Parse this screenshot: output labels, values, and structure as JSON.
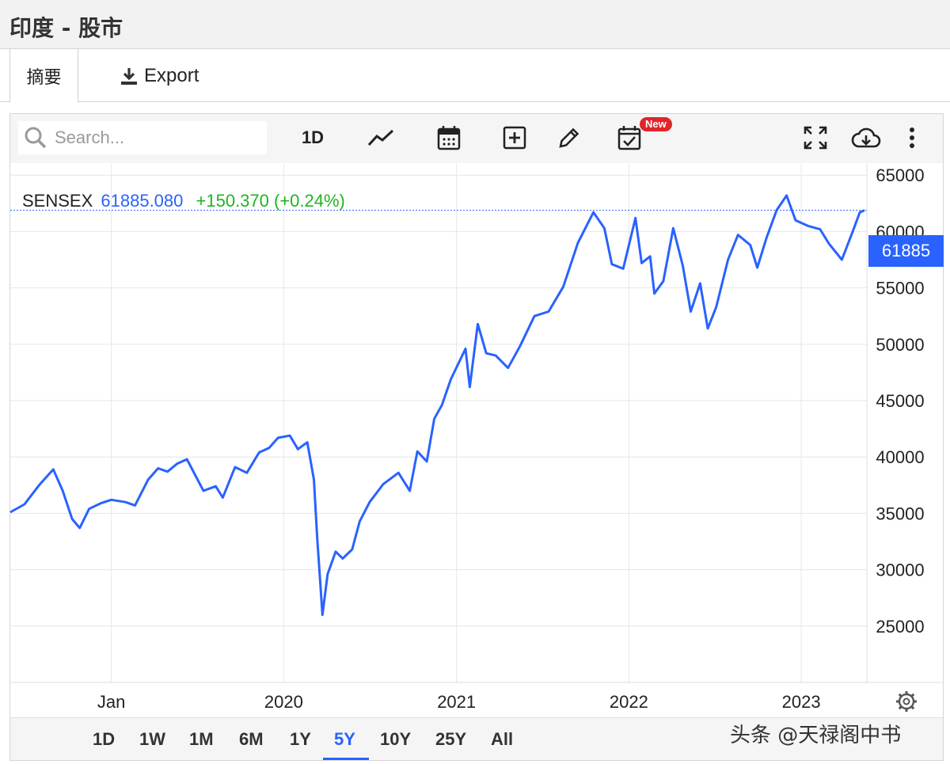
{
  "page": {
    "title": "印度 - 股市"
  },
  "tabs": {
    "summary": "摘要",
    "export": "Export"
  },
  "toolbar": {
    "search_placeholder": "Search...",
    "interval": "1D",
    "new_badge": "New",
    "icons": [
      "search-icon",
      "line-chart-icon",
      "calendar-icon",
      "add-indicator-icon",
      "draw-pencil-icon",
      "calendar-check-icon",
      "fullscreen-icon",
      "cloud-download-icon",
      "more-vertical-icon"
    ]
  },
  "legend": {
    "symbol": "SENSEX",
    "price": "61885.080",
    "change": "+150.370 (+0.24%)"
  },
  "price_tag": "61885",
  "range_buttons": [
    "1D",
    "1W",
    "1M",
    "6M",
    "1Y",
    "5Y",
    "10Y",
    "25Y",
    "All"
  ],
  "active_range": "5Y",
  "watermark": "头条 @天禄阁中书",
  "colors": {
    "line": "#2962ff",
    "positive": "#1fb51f",
    "grid": "#e6e6e6",
    "badge": "#e0262b"
  },
  "chart_data": {
    "type": "line",
    "series": [
      {
        "name": "SENSEX",
        "x": [
          "2018-06-01",
          "2018-07-01",
          "2018-08-01",
          "2018-08-31",
          "2018-09-20",
          "2018-10-10",
          "2018-10-26",
          "2018-11-15",
          "2018-12-10",
          "2019-01-01",
          "2019-01-31",
          "2019-02-20",
          "2019-03-20",
          "2019-04-10",
          "2019-04-30",
          "2019-05-20",
          "2019-06-10",
          "2019-07-15",
          "2019-08-10",
          "2019-08-25",
          "2019-09-20",
          "2019-10-15",
          "2019-11-10",
          "2019-12-01",
          "2019-12-20",
          "2020-01-14",
          "2020-01-31",
          "2020-02-20",
          "2020-03-05",
          "2020-03-12",
          "2020-03-23",
          "2020-04-03",
          "2020-04-20",
          "2020-05-05",
          "2020-05-25",
          "2020-06-10",
          "2020-07-01",
          "2020-07-30",
          "2020-08-31",
          "2020-09-24",
          "2020-10-10",
          "2020-10-30",
          "2020-11-15",
          "2020-12-01",
          "2020-12-20",
          "2021-01-20",
          "2021-01-29",
          "2021-02-15",
          "2021-03-05",
          "2021-03-25",
          "2021-04-20",
          "2021-05-15",
          "2021-06-15",
          "2021-07-15",
          "2021-08-15",
          "2021-09-15",
          "2021-10-18",
          "2021-11-10",
          "2021-11-26",
          "2021-12-20",
          "2022-01-15",
          "2022-01-28",
          "2022-02-15",
          "2022-02-24",
          "2022-03-15",
          "2022-04-05",
          "2022-04-25",
          "2022-05-12",
          "2022-06-01",
          "2022-06-17",
          "2022-07-05",
          "2022-07-30",
          "2022-08-20",
          "2022-09-15",
          "2022-09-30",
          "2022-10-20",
          "2022-11-10",
          "2022-12-01",
          "2022-12-20",
          "2023-01-15",
          "2023-02-10",
          "2023-03-01",
          "2023-03-28",
          "2023-04-20",
          "2023-05-05",
          "2023-05-15"
        ],
        "y": [
          35100,
          35800,
          37500,
          38900,
          37000,
          34500,
          33700,
          35400,
          35900,
          36200,
          36000,
          35700,
          38000,
          39000,
          38700,
          39400,
          39800,
          37000,
          37400,
          36400,
          39100,
          38600,
          40400,
          40800,
          41700,
          41900,
          40700,
          41300,
          38000,
          32800,
          26000,
          29600,
          31600,
          31000,
          31800,
          34300,
          36000,
          37600,
          38600,
          37000,
          40500,
          39600,
          43400,
          44600,
          46900,
          49600,
          46200,
          51800,
          49200,
          49000,
          47900,
          49800,
          52500,
          52900,
          55100,
          59000,
          61700,
          60300,
          57100,
          56700,
          61200,
          57200,
          57800,
          54500,
          55600,
          60300,
          57000,
          52900,
          55400,
          51400,
          53300,
          57500,
          59700,
          58800,
          56800,
          59500,
          61900,
          63200,
          61000,
          60500,
          60200,
          58900,
          57500,
          60000,
          61700,
          61885
        ]
      }
    ],
    "y_axis": {
      "ticks": [
        25000,
        30000,
        35000,
        40000,
        45000,
        50000,
        55000,
        60000,
        65000
      ],
      "range": [
        20000,
        66000
      ],
      "position": "right"
    },
    "x_axis": {
      "ticks": [
        {
          "label": "Jan",
          "date": "2019-01-01"
        },
        {
          "label": "2020",
          "date": "2020-01-01"
        },
        {
          "label": "2021",
          "date": "2021-01-01"
        },
        {
          "label": "2022",
          "date": "2022-01-01"
        },
        {
          "label": "2023",
          "date": "2023-01-01"
        }
      ],
      "range": [
        "2018-06-01",
        "2023-05-20"
      ]
    },
    "last_value": 61885.08,
    "grid": true
  }
}
